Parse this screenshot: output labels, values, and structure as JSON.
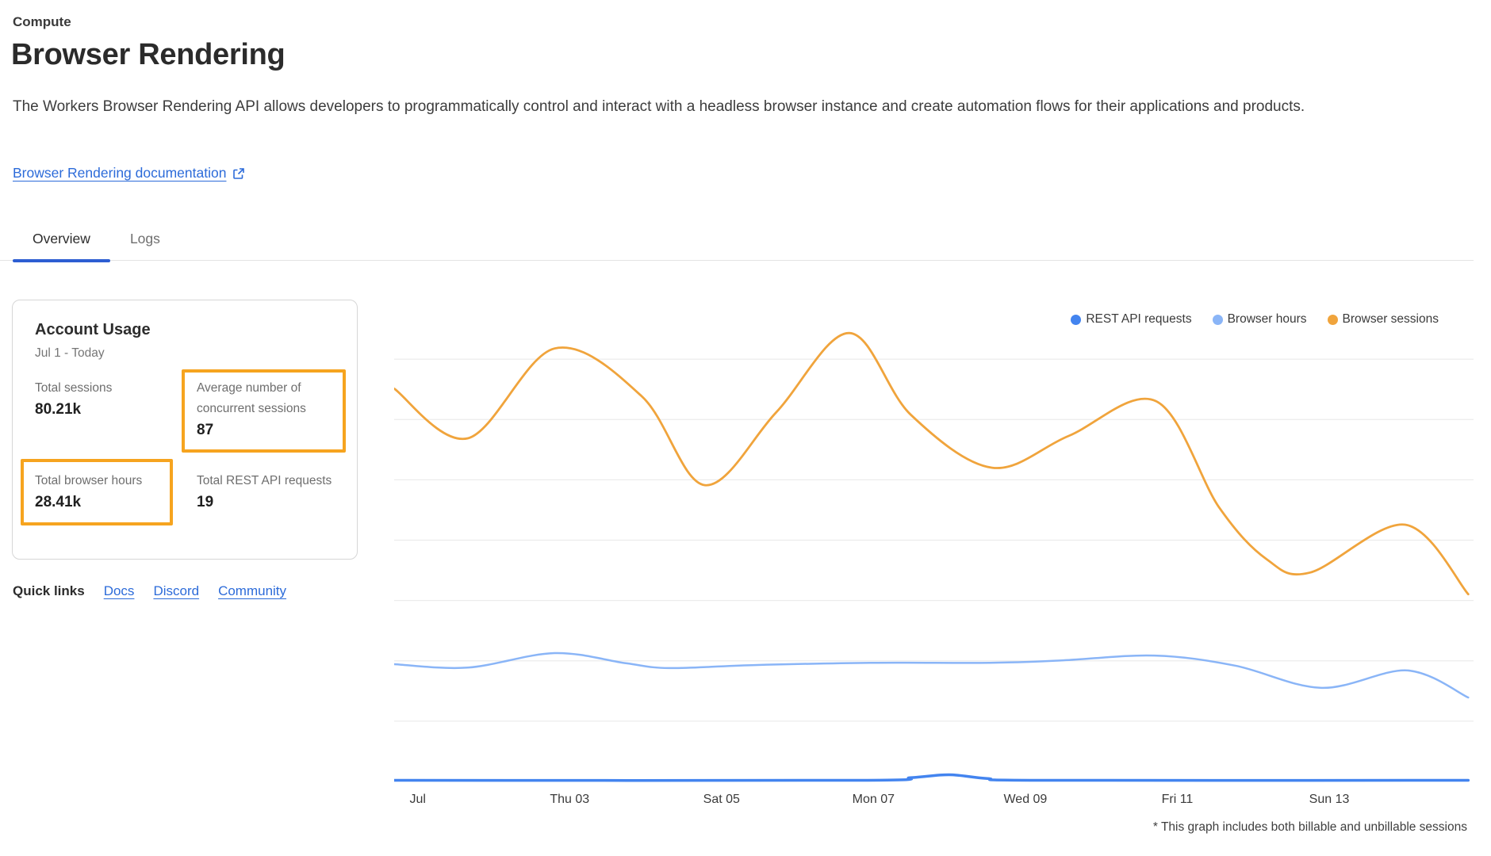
{
  "header": {
    "breadcrumb": "Compute",
    "title": "Browser Rendering",
    "description": "The Workers Browser Rendering API allows developers to programmatically control and interact with a headless browser instance and create automation flows for their applications and products.",
    "doc_link_label": "Browser Rendering documentation"
  },
  "tabs": [
    {
      "label": "Overview",
      "active": true
    },
    {
      "label": "Logs",
      "active": false
    }
  ],
  "account_usage": {
    "title": "Account Usage",
    "date_range": "Jul 1 - Today",
    "stats": [
      {
        "label": "Total sessions",
        "value": "80.21k",
        "highlighted": false
      },
      {
        "label": "Average number of concurrent sessions",
        "value": "87",
        "highlighted": true
      },
      {
        "label": "Total browser hours",
        "value": "28.41k",
        "highlighted": true
      },
      {
        "label": "Total REST API requests",
        "value": "19",
        "highlighted": false
      }
    ],
    "highlight_color": "#f6a41f"
  },
  "quick_links": {
    "label": "Quick links",
    "links": [
      {
        "label": "Docs"
      },
      {
        "label": "Discord"
      },
      {
        "label": "Community"
      }
    ]
  },
  "chart_data": {
    "type": "line",
    "title": "",
    "xlabel": "",
    "ylabel": "",
    "note": "No y-axis tick labels are shown in the chart; series values are relative heights in percent of plot height (0 = baseline, 100 = plot top). x values are day offsets from Jul 1.",
    "x_ticks": [
      {
        "label": "Jul",
        "day": 0
      },
      {
        "label": "Thu 03",
        "day": 2
      },
      {
        "label": "Sat 05",
        "day": 4
      },
      {
        "label": "Mon 07",
        "day": 6
      },
      {
        "label": "Wed 09",
        "day": 8
      },
      {
        "label": "Fri 11",
        "day": 10
      },
      {
        "label": "Sun 13",
        "day": 12
      }
    ],
    "series": [
      {
        "id": "rest-api-requests",
        "name": "REST API requests",
        "color": "#4384ef",
        "width": 3.5,
        "points": [
          [
            -0.31,
            0.25
          ],
          [
            5.8,
            0.25
          ],
          [
            6.5,
            0.8
          ],
          [
            7.0,
            1.4
          ],
          [
            7.5,
            0.6
          ],
          [
            8.2,
            0.25
          ],
          [
            13.83,
            0.25
          ]
        ]
      },
      {
        "id": "browser-hours",
        "name": "Browser hours",
        "color": "#8ab5f7",
        "width": 2.5,
        "points": [
          [
            -0.31,
            24.3
          ],
          [
            0.66,
            23.6
          ],
          [
            1.8,
            26.6
          ],
          [
            2.74,
            24.5
          ],
          [
            3.31,
            23.5
          ],
          [
            4.4,
            24.1
          ],
          [
            5.97,
            24.6
          ],
          [
            7.53,
            24.6
          ],
          [
            8.5,
            25.1
          ],
          [
            9.7,
            26.1
          ],
          [
            10.76,
            24.0
          ],
          [
            11.9,
            19.4
          ],
          [
            13.03,
            23.0
          ],
          [
            13.83,
            17.4
          ]
        ]
      },
      {
        "id": "browser-sessions",
        "name": "Browser sessions",
        "color": "#f0a43c",
        "width": 2.8,
        "points": [
          [
            -0.31,
            81.4
          ],
          [
            0.66,
            71.1
          ],
          [
            1.8,
            89.7
          ],
          [
            2.95,
            79.8
          ],
          [
            3.78,
            61.4
          ],
          [
            4.72,
            76.5
          ],
          [
            5.68,
            92.9
          ],
          [
            6.49,
            76.0
          ],
          [
            7.56,
            65.0
          ],
          [
            8.57,
            71.6
          ],
          [
            9.72,
            78.8
          ],
          [
            10.55,
            56.8
          ],
          [
            11.18,
            46.0
          ],
          [
            11.75,
            43.3
          ],
          [
            13.0,
            53.2
          ],
          [
            13.83,
            38.8
          ]
        ]
      }
    ],
    "layout": {
      "x_min": -0.31,
      "x_max": 13.9,
      "y_min": 0,
      "y_max": 100,
      "grid": true,
      "grid_count": 7,
      "grid_color": "#ececec",
      "legend_position": "top-right"
    },
    "footnote": "* This graph includes both billable and unbillable sessions"
  },
  "colors": {
    "link_blue": "#2c6bd9",
    "tab_underline_blue": "#2d5ed2",
    "sessions_orange": "#f0a43c",
    "hours_light_blue": "#8ab5f7",
    "rest_blue": "#4384ef",
    "annotation_orange": "#f6a41f"
  }
}
